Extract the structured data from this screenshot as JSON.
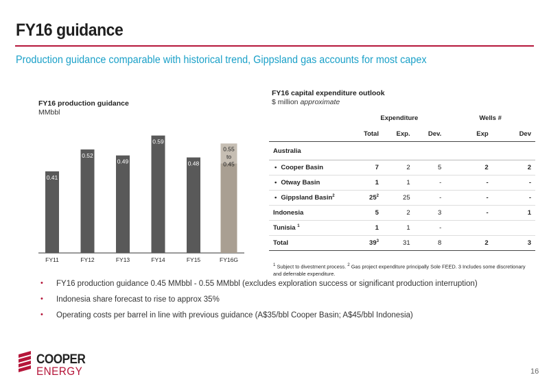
{
  "slide": {
    "title": "FY16 guidance",
    "subtitle": "Production guidance comparable with historical trend, Gippsland gas accounts for most capex",
    "page_number": "16"
  },
  "colors": {
    "accent": "#b5163a",
    "subtitle": "#1aa0c8",
    "bar": "#595959",
    "guidance_bar_high": "#c6beb3",
    "guidance_bar_low": "#a99f92"
  },
  "chart_data": {
    "type": "bar",
    "title": "FY16 production guidance",
    "ylabel": "MMbbl",
    "categories": [
      "FY11",
      "FY12",
      "FY13",
      "FY14",
      "FY15",
      "FY16G"
    ],
    "values": [
      0.41,
      0.52,
      0.49,
      0.59,
      0.48,
      0.55
    ],
    "guidance_range": {
      "category": "FY16G",
      "low": 0.45,
      "high": 0.55
    },
    "data_labels": [
      "0.41",
      "0.52",
      "0.49",
      "0.59",
      "0.48",
      "0.55 to 0.45"
    ],
    "ylim": [
      0,
      0.62
    ],
    "grid": false
  },
  "capex": {
    "title": "FY16 capital expenditure outlook",
    "unit": "$ million",
    "unit_qualifier": "approximate",
    "group_headers": {
      "expenditure": "Expenditure",
      "wells": "Wells #"
    },
    "columns": [
      "Total",
      "Exp.",
      "Dev.",
      "Exp",
      "Dev"
    ],
    "section": "Australia",
    "rows": [
      {
        "label": "Cooper Basin",
        "total": "7",
        "total_sup": "",
        "exp": "2",
        "dev": "5",
        "wells_exp": "2",
        "wells_dev": "2"
      },
      {
        "label": "Otway Basin",
        "total": "1",
        "total_sup": "",
        "exp": "1",
        "dev": "-",
        "wells_exp": "-",
        "wells_dev": "-"
      },
      {
        "label": "Gippsland Basin",
        "label_sup": "2",
        "total": "25",
        "total_sup": "2",
        "exp": "25",
        "dev": "-",
        "wells_exp": "-",
        "wells_dev": "-"
      },
      {
        "label": "Indonesia",
        "total": "5",
        "total_sup": "",
        "exp": "2",
        "dev": "3",
        "wells_exp": "-",
        "wells_dev": "1"
      },
      {
        "label": "Tunisia",
        "label_sup": "1",
        "total": "1",
        "total_sup": "",
        "exp": "1",
        "dev": "-",
        "wells_exp": "",
        "wells_dev": ""
      }
    ],
    "total": {
      "label": "Total",
      "total": "39",
      "total_sup": "3",
      "exp": "31",
      "dev": "8",
      "wells_exp": "2",
      "wells_dev": "3"
    },
    "footnote_marker": "1",
    "footnote": "Subject to divestment process.",
    "footnote2_marker": "2",
    "footnote2": "Gas project expenditure principally Sole FEED.  3 Includes some discretionary and deferrable expenditure."
  },
  "bullets": [
    "FY16 production guidance 0.45 MMbbl - 0.55 MMbbl (excludes exploration success or significant production interruption)",
    "Indonesia share forecast to rise to approx 35%",
    "Operating costs per barrel in line with previous guidance (A$35/bbl Cooper Basin; A$45/bbl Indonesia)"
  ],
  "logo": {
    "line1": "COOPER",
    "line2": "ENERGY"
  }
}
